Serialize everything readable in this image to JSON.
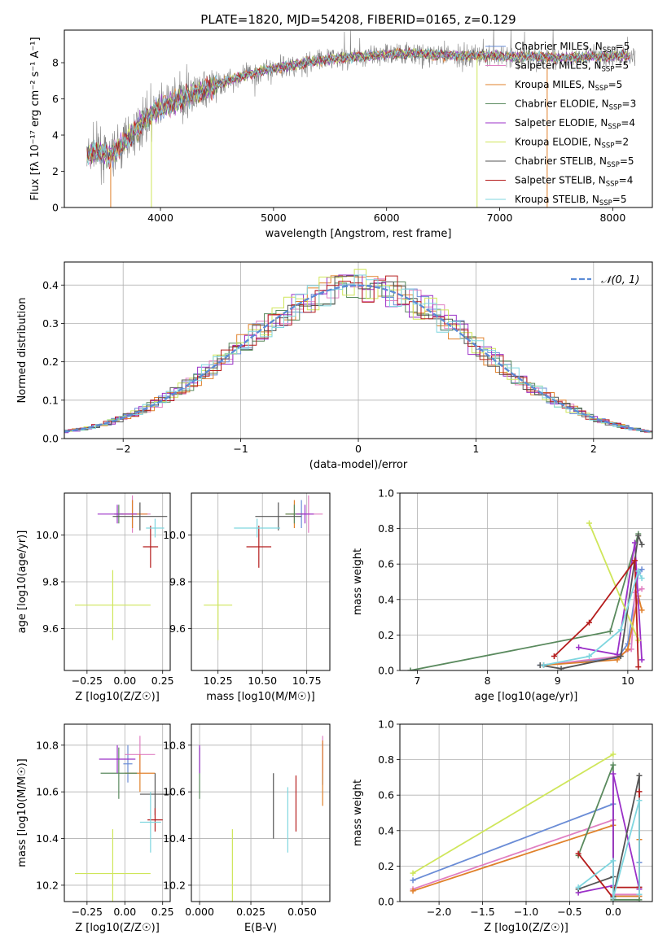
{
  "title": "PLATE=1820, MJD=54208, FIBERID=0165, z=0.129",
  "colors": {
    "Chabrier MILES": "#6a8cd6",
    "Salpeter MILES": "#e07fc2",
    "Kroupa MILES": "#e0812b",
    "Chabrier ELODIE": "#5a8a5e",
    "Salpeter ELODIE": "#9b30c8",
    "Kroupa ELODIE": "#cfe65a",
    "Chabrier STELIB": "#555555",
    "Salpeter STELIB": "#b51c1c",
    "Kroupa STELIB": "#7fd6df",
    "data": "#808080",
    "normal": "#5b8bd6"
  },
  "chart_data": [
    {
      "id": "spectrum",
      "type": "line",
      "xlabel": "wavelength [Angstrom, rest frame]",
      "ylabel": "Flux [fλ 10⁻¹⁷ erg cm⁻² s⁻¹ A⁻¹]",
      "xlim": [
        3150,
        8350
      ],
      "ylim": [
        0,
        9.8
      ],
      "xticks": [
        4000,
        5000,
        6000,
        7000,
        8000
      ],
      "yticks": [
        0,
        2,
        4,
        6,
        8
      ],
      "grid": false,
      "legend_position": "top-right",
      "legend": [
        {
          "label": "Chabrier MILES, N",
          "sub": "SSP",
          "suffix": "=5",
          "model": "Chabrier MILES"
        },
        {
          "label": "Salpeter MILES, N",
          "sub": "SSP",
          "suffix": "=5",
          "model": "Salpeter MILES"
        },
        {
          "label": "Kroupa MILES, N",
          "sub": "SSP",
          "suffix": "=5",
          "model": "Kroupa MILES"
        },
        {
          "label": "Chabrier ELODIE, N",
          "sub": "SSP",
          "suffix": "=3",
          "model": "Chabrier ELODIE"
        },
        {
          "label": "Salpeter ELODIE, N",
          "sub": "SSP",
          "suffix": "=4",
          "model": "Salpeter ELODIE"
        },
        {
          "label": "Kroupa ELODIE, N",
          "sub": "SSP",
          "suffix": "=2",
          "model": "Kroupa ELODIE"
        },
        {
          "label": "Chabrier STELIB, N",
          "sub": "SSP",
          "suffix": "=5",
          "model": "Chabrier STELIB"
        },
        {
          "label": "Salpeter STELIB, N",
          "sub": "SSP",
          "suffix": "=4",
          "model": "Salpeter STELIB"
        },
        {
          "label": "Kroupa STELIB, N",
          "sub": "SSP",
          "suffix": "=5",
          "model": "Kroupa STELIB"
        }
      ],
      "continuum_x": [
        3350,
        3450,
        3550,
        3650,
        3750,
        3850,
        3950,
        4050,
        4150,
        4250,
        4350,
        4500,
        4650,
        4800,
        4950,
        5100,
        5300,
        5500,
        5700,
        5900,
        6100,
        6300,
        6500,
        6700,
        6900,
        7100,
        7300,
        7500,
        7700,
        7900,
        8100
      ],
      "continuum_y": [
        2.9,
        3.1,
        2.8,
        3.4,
        4.0,
        4.8,
        5.3,
        5.6,
        5.9,
        6.2,
        6.4,
        6.8,
        7.1,
        7.4,
        7.6,
        7.8,
        8.0,
        8.2,
        8.3,
        8.4,
        8.5,
        8.5,
        8.4,
        8.4,
        8.4,
        8.35,
        8.35,
        8.3,
        8.3,
        8.35,
        8.4
      ],
      "data_range": [
        3350,
        8200
      ],
      "model_range": [
        3350,
        8150
      ]
    },
    {
      "id": "residuals",
      "type": "line",
      "xlabel": "(data-model)/error",
      "ylabel": "Normed distribution",
      "xlim": [
        -2.5,
        2.5
      ],
      "ylim": [
        0,
        0.46
      ],
      "xticks": [
        -2,
        -1,
        0,
        1,
        2
      ],
      "xtick_labels": [
        "−2",
        "−1",
        "0",
        "1",
        "2"
      ],
      "yticks": [
        0.0,
        0.1,
        0.2,
        0.3,
        0.4
      ],
      "ytick_labels": [
        "0.0",
        "0.1",
        "0.2",
        "0.3",
        "0.4"
      ],
      "grid": true,
      "legend_position": "top-right",
      "legend": [
        {
          "label": "𝒩(0, 1)"
        }
      ],
      "bin_width": 0.1
    },
    {
      "id": "age_vs_Z",
      "type": "scatter",
      "xlabel": "Z [log10(Z/Z☉)]",
      "ylabel": "age  [log10(age/yr)]",
      "xlim": [
        -0.4,
        0.3
      ],
      "ylim": [
        9.42,
        10.18
      ],
      "xticks": [
        -0.25,
        0.0,
        0.25
      ],
      "xtick_labels": [
        "−0.25",
        "0.00",
        "0.25"
      ],
      "yticks": [
        9.6,
        9.8,
        10.0
      ],
      "ytick_labels": [
        "9.6",
        "9.8",
        "10.0"
      ],
      "grid": true,
      "points": [
        {
          "model": "Chabrier MILES",
          "x": 0.05,
          "xerr": 0.05,
          "y": 10.09,
          "yerr": 0.06
        },
        {
          "model": "Salpeter MILES",
          "x": 0.05,
          "xerr": 0.12,
          "y": 10.09,
          "yerr": 0.08
        },
        {
          "model": "Kroupa MILES",
          "x": 0.05,
          "xerr": 0.1,
          "y": 10.09,
          "yerr": 0.06
        },
        {
          "model": "Chabrier ELODIE",
          "x": -0.04,
          "xerr": 0.03,
          "y": 10.09,
          "yerr": 0.04
        },
        {
          "model": "Salpeter ELODIE",
          "x": -0.05,
          "xerr": 0.13,
          "y": 10.09,
          "yerr": 0.04
        },
        {
          "model": "Kroupa ELODIE",
          "x": -0.08,
          "xerr": 0.25,
          "y": 9.7,
          "yerr": 0.15
        },
        {
          "model": "Chabrier STELIB",
          "x": 0.1,
          "xerr": 0.18,
          "y": 10.08,
          "yerr": 0.06
        },
        {
          "model": "Salpeter STELIB",
          "x": 0.17,
          "xerr": 0.05,
          "y": 9.95,
          "yerr": 0.09
        },
        {
          "model": "Kroupa STELIB",
          "x": 0.2,
          "xerr": 0.06,
          "y": 10.03,
          "yerr": 0.04
        }
      ]
    },
    {
      "id": "age_vs_mass",
      "type": "scatter",
      "xlabel": "mass [log10(M/M☉)]",
      "ylabel": "",
      "xlim": [
        10.1,
        10.88
      ],
      "ylim": [
        9.42,
        10.18
      ],
      "xticks": [
        10.25,
        10.5,
        10.75
      ],
      "xtick_labels": [
        "10.25",
        "10.50",
        "10.75"
      ],
      "yticks": [
        9.6,
        9.8,
        10.0
      ],
      "ytick_labels": [
        "9.6",
        "9.8",
        "10.0"
      ],
      "grid": true,
      "points": [
        {
          "model": "Chabrier MILES",
          "x": 10.72,
          "xerr": 0.05,
          "y": 10.09,
          "yerr": 0.06
        },
        {
          "model": "Salpeter MILES",
          "x": 10.76,
          "xerr": 0.08,
          "y": 10.09,
          "yerr": 0.08
        },
        {
          "model": "Kroupa MILES",
          "x": 10.68,
          "xerr": 0.05,
          "y": 10.09,
          "yerr": 0.06
        },
        {
          "model": "Chabrier ELODIE",
          "x": 10.68,
          "xerr": 0.05,
          "y": 10.09,
          "yerr": 0.04
        },
        {
          "model": "Salpeter ELODIE",
          "x": 10.74,
          "xerr": 0.05,
          "y": 10.09,
          "yerr": 0.04
        },
        {
          "model": "Kroupa ELODIE",
          "x": 10.25,
          "xerr": 0.08,
          "y": 9.7,
          "yerr": 0.15
        },
        {
          "model": "Chabrier STELIB",
          "x": 10.59,
          "xerr": 0.13,
          "y": 10.08,
          "yerr": 0.06
        },
        {
          "model": "Salpeter STELIB",
          "x": 10.48,
          "xerr": 0.07,
          "y": 9.95,
          "yerr": 0.09
        },
        {
          "model": "Kroupa STELIB",
          "x": 10.47,
          "xerr": 0.13,
          "y": 10.03,
          "yerr": 0.04
        }
      ]
    },
    {
      "id": "weight_vs_age",
      "type": "line",
      "xlabel": "age  [log10(age/yr)]",
      "ylabel": "mass weight",
      "xlim": [
        6.75,
        10.35
      ],
      "ylim": [
        0,
        1.0
      ],
      "xticks": [
        7,
        8,
        9,
        10
      ],
      "xtick_labels": [
        "7",
        "8",
        "9",
        "10"
      ],
      "yticks": [
        0.0,
        0.2,
        0.4,
        0.6,
        0.8,
        1.0
      ],
      "ytick_labels": [
        "0.0",
        "0.2",
        "0.4",
        "0.6",
        "0.8",
        "1.0"
      ],
      "grid": true,
      "series": [
        {
          "model": "Chabrier MILES",
          "points": [
            [
              8.75,
              0.03
            ],
            [
              9.85,
              0.07
            ],
            [
              10.0,
              0.15
            ],
            [
              10.15,
              0.55
            ],
            [
              10.2,
              0.57
            ]
          ]
        },
        {
          "model": "Salpeter MILES",
          "points": [
            [
              8.8,
              0.03
            ],
            [
              9.85,
              0.08
            ],
            [
              10.05,
              0.12
            ],
            [
              10.1,
              0.44
            ],
            [
              10.2,
              0.46
            ]
          ]
        },
        {
          "model": "Kroupa MILES",
          "points": [
            [
              8.8,
              0.03
            ],
            [
              9.85,
              0.06
            ],
            [
              10.0,
              0.12
            ],
            [
              10.15,
              0.42
            ],
            [
              10.2,
              0.34
            ]
          ]
        },
        {
          "model": "Chabrier ELODIE",
          "points": [
            [
              6.9,
              0.0
            ],
            [
              9.75,
              0.22
            ],
            [
              10.15,
              0.77
            ]
          ]
        },
        {
          "model": "Salpeter ELODIE",
          "points": [
            [
              9.3,
              0.13
            ],
            [
              9.85,
              0.09
            ],
            [
              10.1,
              0.72
            ],
            [
              10.2,
              0.06
            ]
          ]
        },
        {
          "model": "Kroupa ELODIE",
          "points": [
            [
              9.45,
              0.83
            ],
            [
              10.15,
              0.17
            ]
          ]
        },
        {
          "model": "Chabrier STELIB",
          "points": [
            [
              8.75,
              0.03
            ],
            [
              9.05,
              0.01
            ],
            [
              9.9,
              0.08
            ],
            [
              10.15,
              0.76
            ],
            [
              10.2,
              0.71
            ]
          ]
        },
        {
          "model": "Salpeter STELIB",
          "points": [
            [
              8.95,
              0.08
            ],
            [
              9.45,
              0.27
            ],
            [
              10.1,
              0.62
            ],
            [
              10.15,
              0.02
            ]
          ]
        },
        {
          "model": "Kroupa STELIB",
          "points": [
            [
              8.8,
              0.03
            ],
            [
              9.45,
              0.08
            ],
            [
              9.9,
              0.23
            ],
            [
              10.15,
              0.56
            ],
            [
              10.2,
              0.52
            ]
          ]
        }
      ]
    },
    {
      "id": "mass_vs_Z",
      "type": "scatter",
      "xlabel": "Z [log10(Z/Z☉)]",
      "ylabel": "mass [log10(M/M☉)]",
      "xlim": [
        -0.4,
        0.3
      ],
      "ylim": [
        10.13,
        10.89
      ],
      "xticks": [
        -0.25,
        0.0,
        0.25
      ],
      "xtick_labels": [
        "−0.25",
        "0.00",
        "0.25"
      ],
      "yticks": [
        10.2,
        10.4,
        10.6,
        10.8
      ],
      "ytick_labels": [
        "10.2",
        "10.4",
        "10.6",
        "10.8"
      ],
      "grid": true,
      "points": [
        {
          "model": "Chabrier MILES",
          "x": 0.02,
          "xerr": 0.03,
          "y": 10.72,
          "yerr": 0.08
        },
        {
          "model": "Salpeter MILES",
          "x": 0.1,
          "xerr": 0.1,
          "y": 10.76,
          "yerr": 0.08
        },
        {
          "model": "Kroupa MILES",
          "x": 0.1,
          "xerr": 0.1,
          "y": 10.68,
          "yerr": 0.08
        },
        {
          "model": "Chabrier ELODIE",
          "x": -0.04,
          "xerr": 0.12,
          "y": 10.68,
          "yerr": 0.11
        },
        {
          "model": "Salpeter ELODIE",
          "x": -0.05,
          "xerr": 0.12,
          "y": 10.74,
          "yerr": 0.06
        },
        {
          "model": "Kroupa ELODIE",
          "x": -0.08,
          "xerr": 0.25,
          "y": 10.25,
          "yerr": 0.19
        },
        {
          "model": "Chabrier STELIB",
          "x": 0.2,
          "xerr": 0.1,
          "y": 10.59,
          "yerr": 0.09
        },
        {
          "model": "Salpeter STELIB",
          "x": 0.2,
          "xerr": 0.05,
          "y": 10.48,
          "yerr": 0.05
        },
        {
          "model": "Kroupa STELIB",
          "x": 0.17,
          "xerr": 0.07,
          "y": 10.47,
          "yerr": 0.13
        }
      ]
    },
    {
      "id": "mass_vs_ebv",
      "type": "scatter",
      "xlabel": "E(B-V)",
      "ylabel": "",
      "xlim": [
        -0.004,
        0.0635
      ],
      "ylim": [
        10.13,
        10.89
      ],
      "xticks": [
        0.0,
        0.025,
        0.05
      ],
      "xtick_labels": [
        "0.000",
        "0.025",
        "0.050"
      ],
      "yticks": [
        10.2,
        10.4,
        10.6,
        10.8
      ],
      "ytick_labels": [
        "10.2",
        "10.4",
        "10.6",
        "10.8"
      ],
      "grid": true,
      "points": [
        {
          "model": "Chabrier MILES",
          "x": 0.06,
          "y": 10.72,
          "yerr": 0.09
        },
        {
          "model": "Salpeter MILES",
          "x": 0.06,
          "y": 10.76,
          "yerr": 0.08
        },
        {
          "model": "Kroupa MILES",
          "x": 0.06,
          "y": 10.68,
          "yerr": 0.14
        },
        {
          "model": "Chabrier ELODIE",
          "x": 0.0,
          "y": 10.68,
          "yerr": 0.11
        },
        {
          "model": "Salpeter ELODIE",
          "x": 0.0,
          "y": 10.74,
          "yerr": 0.06
        },
        {
          "model": "Kroupa ELODIE",
          "x": 0.016,
          "y": 10.25,
          "yerr": 0.19
        },
        {
          "model": "Chabrier STELIB",
          "x": 0.036,
          "y": 10.54,
          "yerr": 0.14
        },
        {
          "model": "Salpeter STELIB",
          "x": 0.047,
          "y": 10.55,
          "yerr": 0.12
        },
        {
          "model": "Kroupa STELIB",
          "x": 0.043,
          "y": 10.48,
          "yerr": 0.14
        }
      ]
    },
    {
      "id": "weight_vs_Z",
      "type": "line",
      "xlabel": "Z [log10(Z/Z☉)]",
      "ylabel": "mass weight",
      "xlim": [
        -2.45,
        0.45
      ],
      "ylim": [
        0,
        1.0
      ],
      "xticks": [
        -2.0,
        -1.5,
        -1.0,
        -0.5,
        0.0
      ],
      "xtick_labels": [
        "−2.0",
        "−1.5",
        "−1.0",
        "−0.5",
        "0.0"
      ],
      "yticks": [
        0.0,
        0.2,
        0.4,
        0.6,
        0.8,
        1.0
      ],
      "ytick_labels": [
        "0.0",
        "0.2",
        "0.4",
        "0.6",
        "0.8",
        "1.0"
      ],
      "grid": true,
      "series": [
        {
          "model": "Kroupa ELODIE",
          "points": [
            [
              -2.3,
              0.16
            ],
            [
              0.0,
              0.83
            ]
          ]
        },
        {
          "model": "Chabrier MILES",
          "points": [
            [
              -2.3,
              0.12
            ],
            [
              0.0,
              0.55
            ],
            [
              0.0,
              0.03
            ],
            [
              0.3,
              0.03
            ],
            [
              0.3,
              0.22
            ]
          ]
        },
        {
          "model": "Salpeter MILES",
          "points": [
            [
              -2.3,
              0.07
            ],
            [
              0.0,
              0.46
            ],
            [
              0.0,
              0.04
            ],
            [
              0.3,
              0.04
            ],
            [
              0.3,
              0.08
            ]
          ]
        },
        {
          "model": "Kroupa MILES",
          "points": [
            [
              -2.3,
              0.06
            ],
            [
              0.0,
              0.43
            ],
            [
              0.0,
              0.03
            ],
            [
              0.3,
              0.03
            ],
            [
              0.3,
              0.35
            ]
          ]
        },
        {
          "model": "Chabrier ELODIE",
          "points": [
            [
              -0.4,
              0.26
            ],
            [
              0.0,
              0.77
            ],
            [
              0.0,
              0.01
            ],
            [
              0.3,
              0.01
            ]
          ]
        },
        {
          "model": "Salpeter ELODIE",
          "points": [
            [
              -0.4,
              0.05
            ],
            [
              0.0,
              0.09
            ],
            [
              0.0,
              0.72
            ],
            [
              0.3,
              0.07
            ]
          ]
        },
        {
          "model": "Chabrier STELIB",
          "points": [
            [
              -0.4,
              0.07
            ],
            [
              0.0,
              0.14
            ],
            [
              0.0,
              0.03
            ],
            [
              0.3,
              0.71
            ],
            [
              0.3,
              0.08
            ]
          ]
        },
        {
          "model": "Salpeter STELIB",
          "points": [
            [
              -0.4,
              0.27
            ],
            [
              0.0,
              0.02
            ],
            [
              0.0,
              0.08
            ],
            [
              0.3,
              0.08
            ],
            [
              0.3,
              0.62
            ]
          ]
        },
        {
          "model": "Kroupa STELIB",
          "points": [
            [
              -0.4,
              0.08
            ],
            [
              0.0,
              0.23
            ],
            [
              0.0,
              0.02
            ],
            [
              0.3,
              0.57
            ],
            [
              0.3,
              0.04
            ]
          ]
        }
      ]
    }
  ]
}
